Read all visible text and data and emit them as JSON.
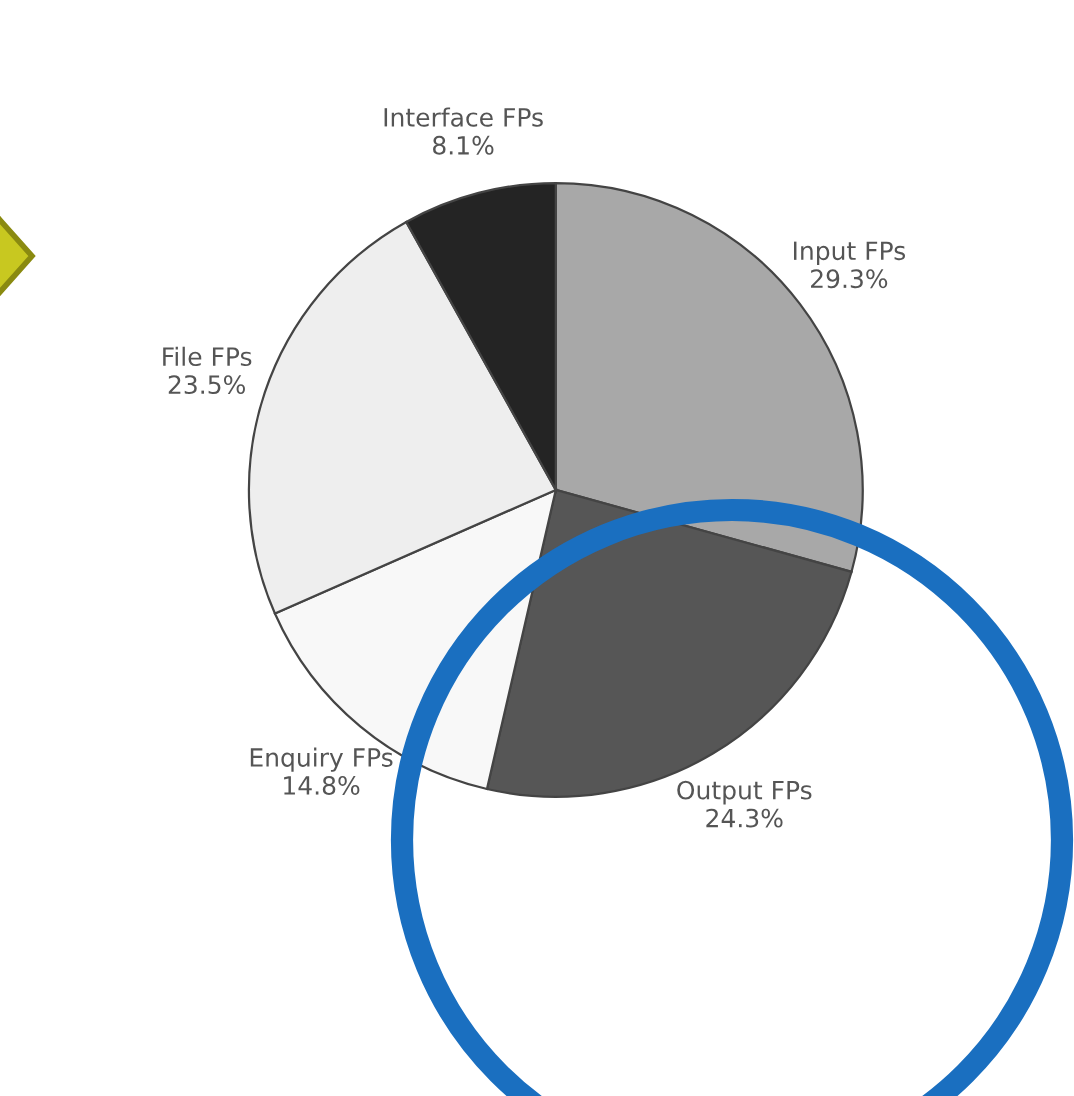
{
  "chart_data": {
    "type": "pie",
    "categories": [
      "Input FPs",
      "Output FPs",
      "Enquiry FPs",
      "File FPs",
      "Interface FPs"
    ],
    "values": [
      29.3,
      24.3,
      14.8,
      23.5,
      8.1
    ],
    "value_labels": [
      "29.3%",
      "24.3%",
      "14.8%",
      "23.5%",
      "8.1%"
    ],
    "colors": [
      "#a8a8a8",
      "#565656",
      "#f8f8f8",
      "#eeeeee",
      "#242424"
    ],
    "legend": false
  }
}
